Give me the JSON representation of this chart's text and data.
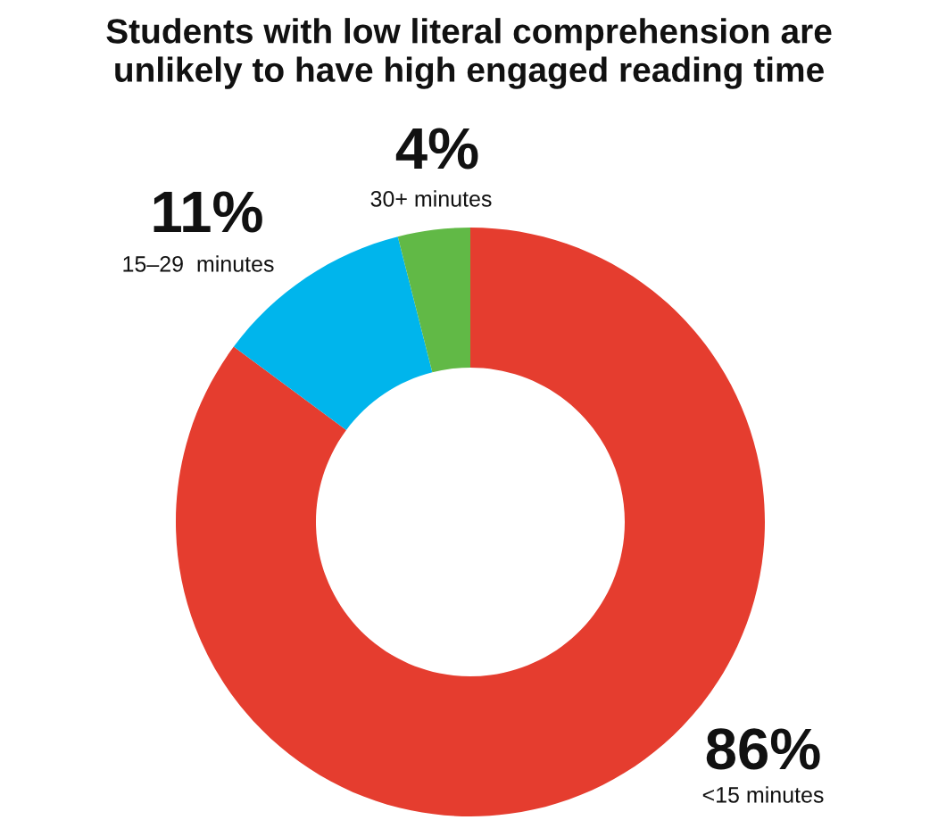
{
  "chart_data": {
    "type": "donut",
    "title": "Students with low literal comprehension are\nunlikely to have high engaged reading time",
    "categories": [
      "<15 minutes",
      "15–29  minutes",
      "30+ minutes"
    ],
    "values": [
      86,
      11,
      4
    ],
    "value_labels": [
      "86%",
      "11%",
      "4%"
    ],
    "colors": [
      "#e53d2f",
      "#00b5ec",
      "#61b946"
    ]
  }
}
